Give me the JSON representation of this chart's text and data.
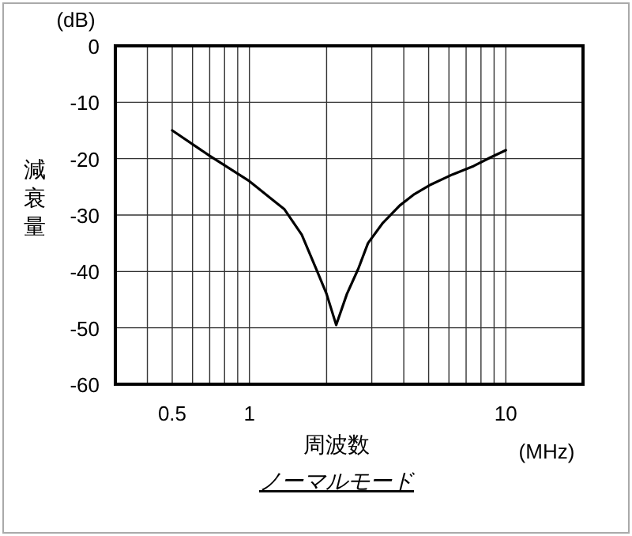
{
  "chart_data": {
    "type": "line",
    "title": "ノーマルモード",
    "xlabel": "周波数",
    "ylabel": "減衰量",
    "annotations": [
      "(dB)",
      "(MHz)"
    ],
    "x": [
      0.5,
      0.7,
      1,
      1.37,
      1.6,
      1.82,
      2.0,
      2.18,
      2.4,
      2.66,
      2.9,
      3.3,
      3.86,
      4.4,
      5.1,
      6.2,
      7.5,
      8.7,
      10
    ],
    "series": [
      {
        "color": "#000000",
        "values": [
          -15,
          -19.5,
          -24,
          -29,
          -33.5,
          -39.5,
          -44,
          -49.5,
          -44,
          -39.5,
          -35,
          -31.5,
          -28.3,
          -26.3,
          -24.6,
          -22.8,
          -21.3,
          -19.8,
          -18.5
        ]
      }
    ],
    "log": "x",
    "xlim": [
      0.3,
      20
    ],
    "ylim": [
      -60,
      0
    ],
    "xticks": [
      {
        "value": 0.4,
        "label": null
      },
      0.5,
      {
        "value": 0.6,
        "label": null
      },
      {
        "value": 0.7,
        "label": null
      },
      {
        "value": 0.8,
        "label": null
      },
      {
        "value": 0.9,
        "label": null
      },
      1,
      {
        "value": 2,
        "label": null
      },
      {
        "value": 3,
        "label": null
      },
      {
        "value": 4,
        "label": null
      },
      {
        "value": 5,
        "label": null
      },
      {
        "value": 6,
        "label": null
      },
      {
        "value": 7,
        "label": null
      },
      {
        "value": 8,
        "label": null
      },
      {
        "value": 9,
        "label": null
      },
      10
    ],
    "yticks": [
      -60,
      -50,
      -40,
      -30,
      -20,
      -10,
      0
    ],
    "grid": true,
    "marker": "none",
    "line_style": "solid"
  }
}
